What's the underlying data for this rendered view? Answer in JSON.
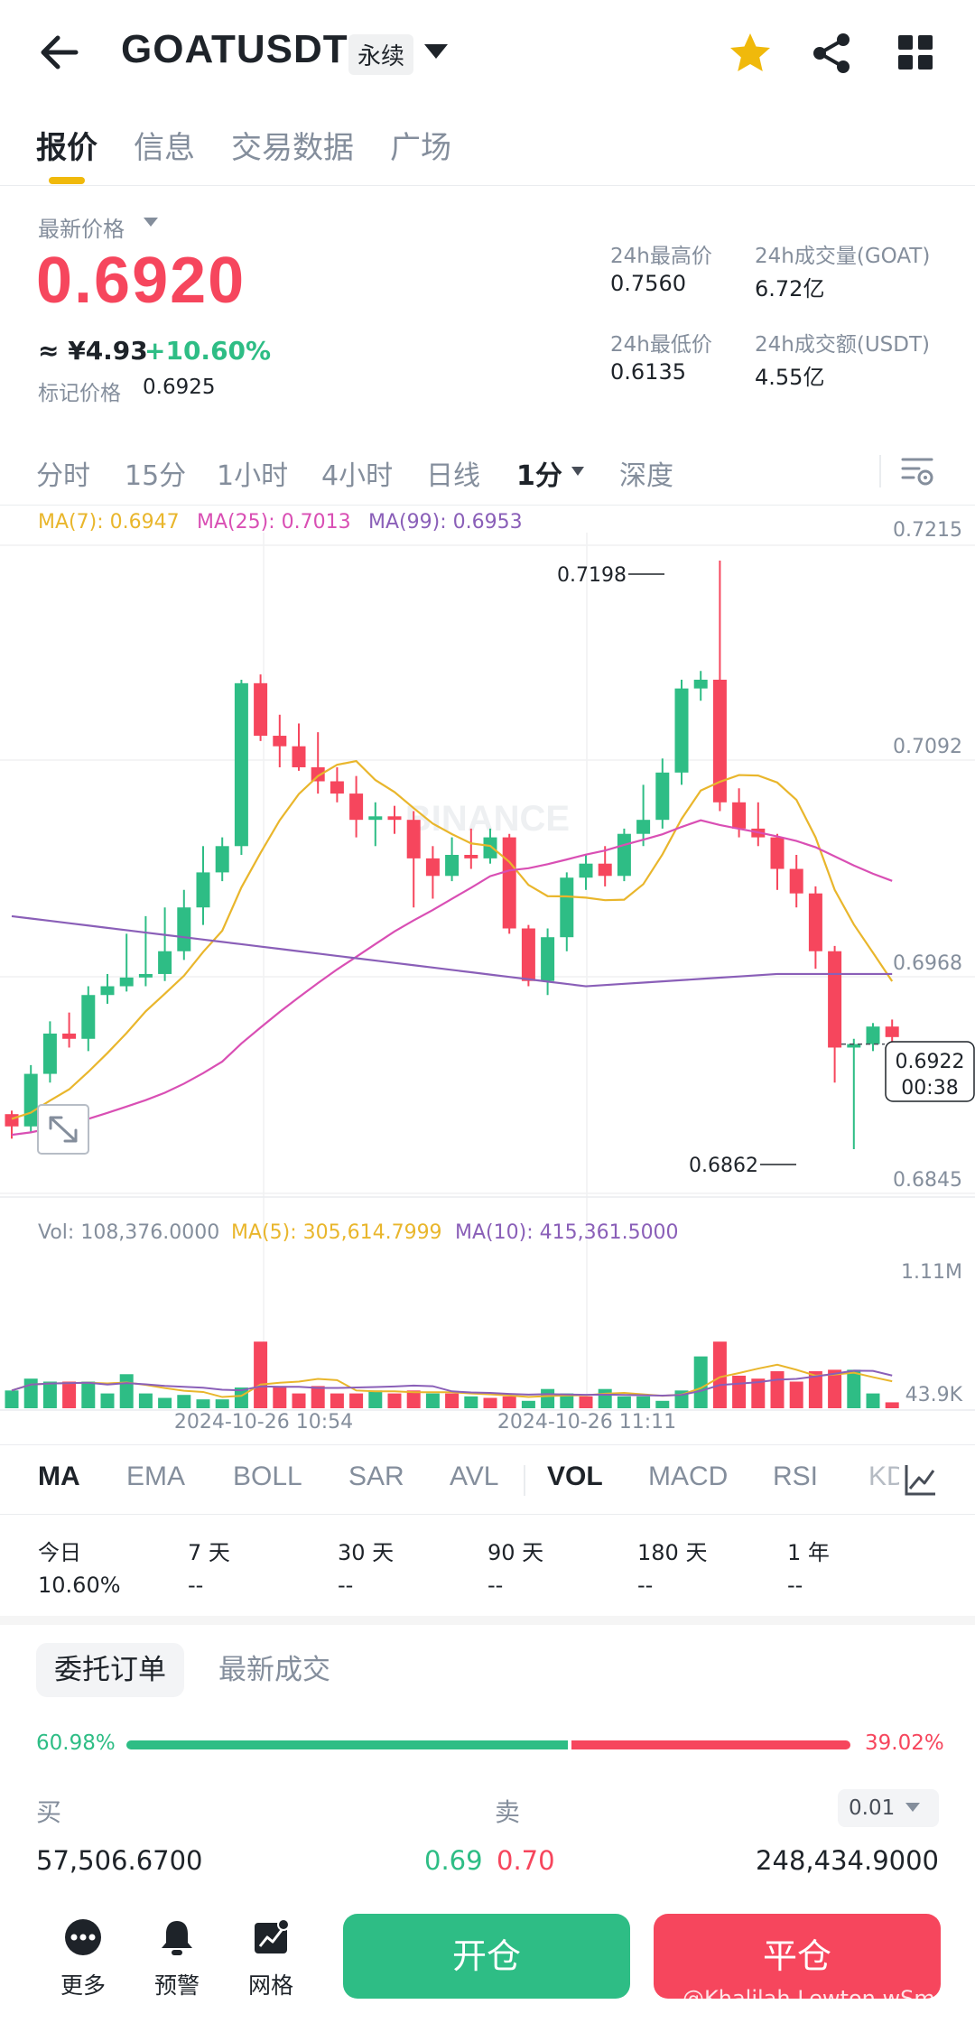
{
  "header": {
    "symbol": "GOATUSDT",
    "contract_type": "永续",
    "icons": [
      "back-arrow-icon",
      "chevron-down-icon",
      "star-icon",
      "share-icon",
      "grid-icon"
    ],
    "favorite_color": "#f0b90b"
  },
  "main_tabs": [
    {
      "label": "报价",
      "active": true
    },
    {
      "label": "信息",
      "active": false
    },
    {
      "label": "交易数据",
      "active": false
    },
    {
      "label": "广场",
      "active": false
    }
  ],
  "price": {
    "label": "最新价格",
    "last": "0.6920",
    "cny": "≈ ¥4.93",
    "change": "+10.60%",
    "mark_label": "标记价格",
    "mark_value": "0.6925"
  },
  "stats": {
    "high_label": "24h最高价",
    "high": "0.7560",
    "vol_base_label": "24h成交量(GOAT)",
    "vol_base": "6.72亿",
    "low_label": "24h最低价",
    "low": "0.6135",
    "vol_quote_label": "24h成交额(USDT)",
    "vol_quote": "4.55亿"
  },
  "timeframes": [
    {
      "label": "分时",
      "active": false
    },
    {
      "label": "15分",
      "active": false
    },
    {
      "label": "1小时",
      "active": false
    },
    {
      "label": "4小时",
      "active": false
    },
    {
      "label": "日线",
      "active": false
    },
    {
      "label": "1分",
      "active": true
    },
    {
      "label": "深度",
      "active": false
    }
  ],
  "chart_legend": {
    "ma7": "MA(7): 0.6947",
    "ma25": "MA(25): 0.7013",
    "ma99": "MA(99): 0.6953",
    "vol": "Vol: 108,376.0000",
    "vol_ma5": "MA(5): 305,614.7999",
    "vol_ma10": "MA(10): 415,361.5000",
    "current_price": "0.6922",
    "countdown": "00:38",
    "watermark": "BINANCE"
  },
  "chart_data": {
    "type": "candlestick",
    "interval": "1m",
    "price_ticks": [
      "0.7215",
      "0.7092",
      "0.6968",
      "0.6845"
    ],
    "price_range": [
      0.6845,
      0.7215
    ],
    "volume_ticks": [
      "1.11M",
      "43.9K"
    ],
    "volume_range": [
      0,
      1110000
    ],
    "time_labels": [
      "2024-10-26 10:54",
      "2024-10-26 11:11"
    ],
    "high_annotation": "0.7198",
    "low_annotation": "0.6862",
    "colors": {
      "up": "#2ebd85",
      "down": "#f6465d",
      "ma7": "#e9b62c",
      "ma25": "#d94fb4",
      "ma99": "#8a5fb8"
    },
    "candles": [
      [
        0.6882,
        0.6875,
        0.6884,
        0.6868
      ],
      [
        0.6875,
        0.6905,
        0.691,
        0.6872
      ],
      [
        0.6905,
        0.6928,
        0.6935,
        0.69
      ],
      [
        0.6928,
        0.6925,
        0.694,
        0.692
      ],
      [
        0.6925,
        0.695,
        0.6955,
        0.6918
      ],
      [
        0.695,
        0.6955,
        0.6962,
        0.6945
      ],
      [
        0.6955,
        0.696,
        0.6985,
        0.6952
      ],
      [
        0.696,
        0.6962,
        0.6995,
        0.6955
      ],
      [
        0.6962,
        0.6975,
        0.7,
        0.6958
      ],
      [
        0.6975,
        0.7,
        0.701,
        0.697
      ],
      [
        0.7,
        0.702,
        0.7035,
        0.699
      ],
      [
        0.702,
        0.7035,
        0.704,
        0.7015
      ],
      [
        0.7035,
        0.7128,
        0.713,
        0.703
      ],
      [
        0.7128,
        0.7098,
        0.7133,
        0.7095
      ],
      [
        0.7098,
        0.7092,
        0.711,
        0.708
      ],
      [
        0.7092,
        0.708,
        0.7105,
        0.7078
      ],
      [
        0.708,
        0.7072,
        0.71,
        0.7065
      ],
      [
        0.7072,
        0.7065,
        0.708,
        0.706
      ],
      [
        0.7065,
        0.705,
        0.7075,
        0.704
      ],
      [
        0.705,
        0.7052,
        0.706,
        0.7035
      ],
      [
        0.7052,
        0.705,
        0.7058,
        0.7042
      ],
      [
        0.705,
        0.7028,
        0.7055,
        0.7
      ],
      [
        0.7028,
        0.7018,
        0.7035,
        0.7005
      ],
      [
        0.7018,
        0.703,
        0.704,
        0.7015
      ],
      [
        0.703,
        0.7028,
        0.7045,
        0.7022
      ],
      [
        0.7028,
        0.704,
        0.7045,
        0.7025
      ],
      [
        0.704,
        0.6988,
        0.7042,
        0.6985
      ],
      [
        0.6988,
        0.6958,
        0.699,
        0.6955
      ],
      [
        0.6958,
        0.6983,
        0.6988,
        0.695
      ],
      [
        0.6983,
        0.7017,
        0.702,
        0.6975
      ],
      [
        0.7017,
        0.7025,
        0.703,
        0.701
      ],
      [
        0.7025,
        0.7018,
        0.7035,
        0.7012
      ],
      [
        0.7018,
        0.7042,
        0.7045,
        0.7015
      ],
      [
        0.7042,
        0.705,
        0.707,
        0.7035
      ],
      [
        0.705,
        0.7077,
        0.7085,
        0.7045
      ],
      [
        0.7077,
        0.7125,
        0.713,
        0.707
      ],
      [
        0.7125,
        0.713,
        0.7135,
        0.7118
      ],
      [
        0.713,
        0.706,
        0.7198,
        0.7055
      ],
      [
        0.706,
        0.7045,
        0.7068,
        0.704
      ],
      [
        0.7045,
        0.704,
        0.706,
        0.7035
      ],
      [
        0.704,
        0.7022,
        0.7042,
        0.701
      ],
      [
        0.7022,
        0.7008,
        0.703,
        0.7
      ],
      [
        0.7008,
        0.6975,
        0.7012,
        0.6965
      ],
      [
        0.6975,
        0.692,
        0.6978,
        0.69
      ],
      [
        0.692,
        0.6922,
        0.6925,
        0.6862
      ],
      [
        0.6922,
        0.6932,
        0.6934,
        0.6918
      ],
      [
        0.6932,
        0.6926,
        0.6936,
        0.6922
      ]
    ],
    "volumes": [
      0.12,
      0.2,
      0.18,
      0.18,
      0.18,
      0.1,
      0.23,
      0.1,
      0.07,
      0.09,
      0.06,
      0.06,
      0.14,
      0.45,
      0.15,
      0.1,
      0.15,
      0.1,
      0.1,
      0.12,
      0.1,
      0.12,
      0.1,
      0.1,
      0.08,
      0.07,
      0.08,
      0.05,
      0.13,
      0.1,
      0.08,
      0.13,
      0.08,
      0.08,
      0.05,
      0.12,
      0.35,
      0.45,
      0.22,
      0.2,
      0.25,
      0.18,
      0.25,
      0.26,
      0.26,
      0.1,
      0.04
    ],
    "volume_colors": [
      "g",
      "g",
      "g",
      "r",
      "g",
      "g",
      "g",
      "g",
      "g",
      "g",
      "g",
      "g",
      "g",
      "r",
      "r",
      "r",
      "r",
      "r",
      "r",
      "g",
      "r",
      "r",
      "g",
      "r",
      "g",
      "r",
      "r",
      "g",
      "g",
      "g",
      "r",
      "g",
      "g",
      "g",
      "g",
      "g",
      "g",
      "r",
      "r",
      "r",
      "r",
      "r",
      "r",
      "r",
      "g",
      "g",
      "r"
    ],
    "vol_ma_note": "MA(5) and MA(10) volume lines"
  },
  "indicator_tabs": [
    {
      "label": "MA",
      "active": true
    },
    {
      "label": "EMA",
      "active": false
    },
    {
      "label": "BOLL",
      "active": false
    },
    {
      "label": "SAR",
      "active": false
    },
    {
      "label": "AVL",
      "active": false
    },
    {
      "label": "VOL",
      "active": true
    },
    {
      "label": "MACD",
      "active": false
    },
    {
      "label": "RSI",
      "active": false
    },
    {
      "label": "KD",
      "active": false
    }
  ],
  "periods": [
    {
      "label": "今日",
      "value": "10.60%"
    },
    {
      "label": "7 天",
      "value": "--"
    },
    {
      "label": "30 天",
      "value": "--"
    },
    {
      "label": "90 天",
      "value": "--"
    },
    {
      "label": "180 天",
      "value": "--"
    },
    {
      "label": "1 年",
      "value": "--"
    }
  ],
  "orderbook": {
    "tab_orders": "委托订单",
    "tab_trades": "最新成交",
    "buy_pct": "60.98%",
    "sell_pct": "39.02%",
    "buy_ratio": 0.6098,
    "buy_label": "买",
    "sell_label": "卖",
    "precision": "0.01",
    "buy_qty": "57,506.6700",
    "bid_price": "0.69",
    "ask_price": "0.70",
    "sell_qty": "248,434.9000"
  },
  "bottom": {
    "more": "更多",
    "alert": "预警",
    "grid": "网格",
    "open": "开仓",
    "close": "平仓",
    "watermark": "@Khalilah Lewton wSm"
  }
}
